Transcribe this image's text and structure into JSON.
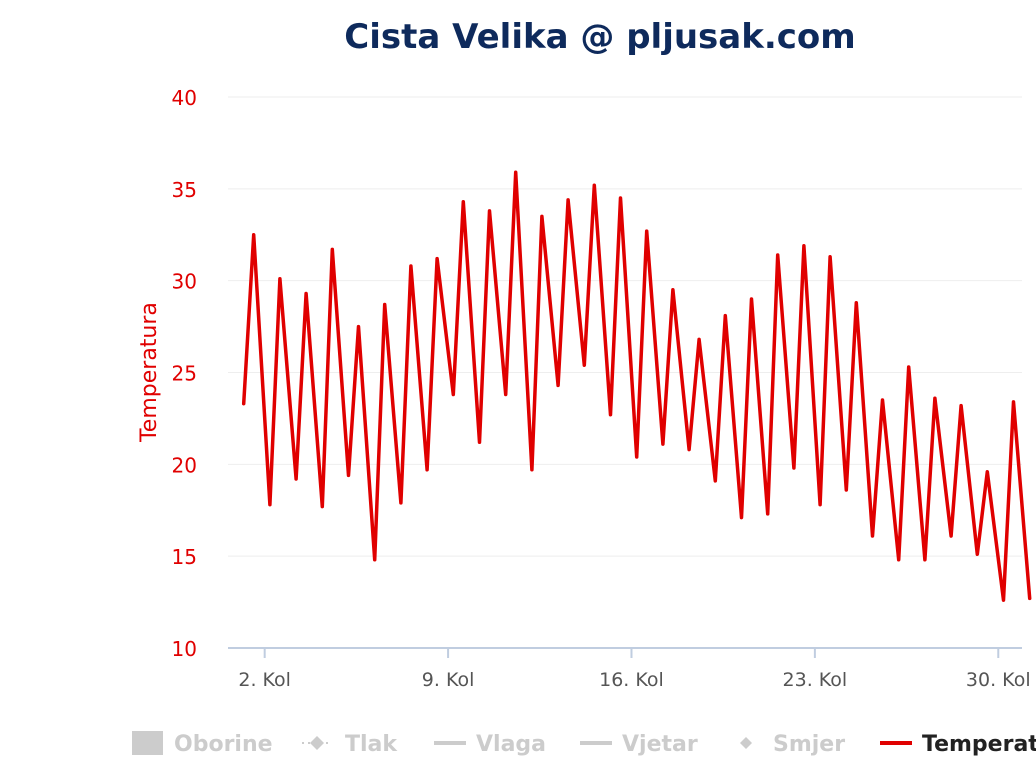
{
  "page": {
    "title": "Cista Velika @ pljusak.com"
  },
  "colors": {
    "title": "#0e2a5c",
    "temperature": "#e00000",
    "grid": "#eeeeee",
    "axis": "#c0cde0",
    "tick_text": "#555555",
    "legend_inactive": "#cccccc",
    "legend_active": "#222222"
  },
  "chart_data": {
    "type": "line",
    "title": "Cista Velika @ pljusak.com",
    "ylabel": "Temperatura",
    "ylim": [
      10,
      40
    ],
    "yticks": [
      10,
      15,
      20,
      25,
      30,
      35,
      40
    ],
    "xlim": [
      "1. Kol",
      "31. Kol"
    ],
    "xticks": [
      {
        "label": "2. Kol",
        "day": 2
      },
      {
        "label": "9. Kol",
        "day": 9
      },
      {
        "label": "16. Kol",
        "day": 16
      },
      {
        "label": "23. Kol",
        "day": 23
      },
      {
        "label": "30. Kol",
        "day": 30
      }
    ],
    "grid": true,
    "legend_position": "bottom",
    "legend": [
      {
        "name": "Oborine",
        "symbol": "square",
        "active": false
      },
      {
        "name": "Tlak",
        "symbol": "dash-diamond",
        "active": false
      },
      {
        "name": "Vlaga",
        "symbol": "line",
        "active": false
      },
      {
        "name": "Vjetar",
        "symbol": "line",
        "active": false
      },
      {
        "name": "Smjer",
        "symbol": "diamond",
        "active": false
      },
      {
        "name": "Temperatura",
        "symbol": "line",
        "active": true
      }
    ],
    "series": [
      {
        "name": "Temperatura",
        "daily": [
          {
            "day": 1,
            "min": 23.3,
            "max": 32.5
          },
          {
            "day": 2,
            "min": 17.8,
            "max": 30.1
          },
          {
            "day": 3,
            "min": 19.2,
            "max": 29.3
          },
          {
            "day": 4,
            "min": 17.7,
            "max": 31.7
          },
          {
            "day": 5,
            "min": 19.4,
            "max": 27.5
          },
          {
            "day": 6,
            "min": 14.8,
            "max": 28.7
          },
          {
            "day": 7,
            "min": 17.9,
            "max": 30.8
          },
          {
            "day": 8,
            "min": 19.7,
            "max": 31.2
          },
          {
            "day": 9,
            "min": 23.8,
            "max": 34.3
          },
          {
            "day": 10,
            "min": 21.2,
            "max": 33.8
          },
          {
            "day": 11,
            "min": 23.8,
            "max": 35.9
          },
          {
            "day": 12,
            "min": 19.7,
            "max": 33.5
          },
          {
            "day": 13,
            "min": 24.3,
            "max": 34.4
          },
          {
            "day": 14,
            "min": 25.4,
            "max": 35.2
          },
          {
            "day": 15,
            "min": 22.7,
            "max": 34.5
          },
          {
            "day": 16,
            "min": 20.4,
            "max": 32.7
          },
          {
            "day": 17,
            "min": 21.1,
            "max": 29.5
          },
          {
            "day": 18,
            "min": 20.8,
            "max": 26.8
          },
          {
            "day": 19,
            "min": 19.1,
            "max": 28.1
          },
          {
            "day": 20,
            "min": 17.1,
            "max": 29.0
          },
          {
            "day": 21,
            "min": 17.3,
            "max": 31.4
          },
          {
            "day": 22,
            "min": 19.8,
            "max": 31.9
          },
          {
            "day": 23,
            "min": 17.8,
            "max": 31.3
          },
          {
            "day": 24,
            "min": 18.6,
            "max": 28.8
          },
          {
            "day": 25,
            "min": 16.1,
            "max": 23.5
          },
          {
            "day": 26,
            "min": 14.8,
            "max": 25.3
          },
          {
            "day": 27,
            "min": 14.8,
            "max": 23.6
          },
          {
            "day": 28,
            "min": 16.1,
            "max": 23.2
          },
          {
            "day": 29,
            "min": 15.1,
            "max": 19.6
          },
          {
            "day": 30,
            "min": 12.6,
            "max": 23.4
          },
          {
            "day": 31,
            "min": 12.7,
            "max": 12.7
          }
        ]
      }
    ]
  }
}
